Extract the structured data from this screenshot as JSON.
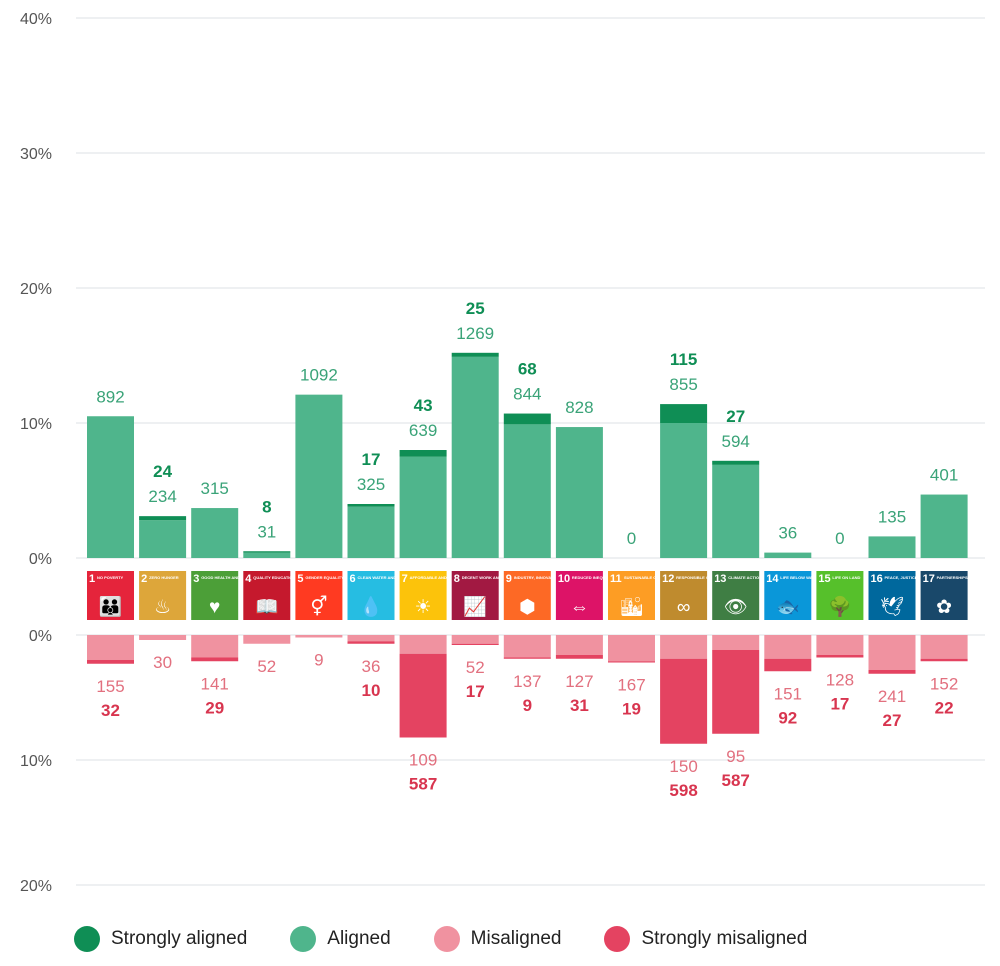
{
  "chart_data": {
    "type": "bar",
    "stacked": true,
    "diverging": true,
    "axis_ticks": {
      "positive": [
        "0%",
        "10%",
        "20%",
        "30%",
        "40%"
      ],
      "negative": [
        "0%",
        "10%",
        "20%"
      ]
    },
    "ylim_positive": [
      0,
      40
    ],
    "ylim_negative": [
      0,
      20
    ],
    "grid": true,
    "legend_position": "bottom-left",
    "categories": [
      {
        "num": "1",
        "label": "NO POVERTY",
        "color": "#e5243b",
        "glyph": "👪"
      },
      {
        "num": "2",
        "label": "ZERO HUNGER",
        "color": "#dda63a",
        "glyph": "♨"
      },
      {
        "num": "3",
        "label": "GOOD HEALTH AND WELL-BEING",
        "color": "#4c9f38",
        "glyph": "♥"
      },
      {
        "num": "4",
        "label": "QUALITY EDUCATION",
        "color": "#c5192d",
        "glyph": "📖"
      },
      {
        "num": "5",
        "label": "GENDER EQUALITY",
        "color": "#ff3a21",
        "glyph": "⚥"
      },
      {
        "num": "6",
        "label": "CLEAN WATER AND SANITATION",
        "color": "#26bde2",
        "glyph": "💧"
      },
      {
        "num": "7",
        "label": "AFFORDABLE AND CLEAN ENERGY",
        "color": "#fcc30b",
        "glyph": "☀"
      },
      {
        "num": "8",
        "label": "DECENT WORK AND ECONOMIC GROWTH",
        "color": "#a21942",
        "glyph": "📈"
      },
      {
        "num": "9",
        "label": "INDUSTRY, INNOVATION AND INFRASTRUCTURE",
        "color": "#fd6925",
        "glyph": "⬢"
      },
      {
        "num": "10",
        "label": "REDUCED INEQUALITIES",
        "color": "#dd1367",
        "glyph": "⇔"
      },
      {
        "num": "11",
        "label": "SUSTAINABLE CITIES AND COMMUNITIES",
        "color": "#fd9d24",
        "glyph": "🏙"
      },
      {
        "num": "12",
        "label": "RESPONSIBLE CONSUMPTION AND PRODUCTION",
        "color": "#bf8b2e",
        "glyph": "∞"
      },
      {
        "num": "13",
        "label": "CLIMATE ACTION",
        "color": "#3f7e44",
        "glyph": "👁"
      },
      {
        "num": "14",
        "label": "LIFE BELOW WATER",
        "color": "#0a97d9",
        "glyph": "🐟"
      },
      {
        "num": "15",
        "label": "LIFE ON LAND",
        "color": "#56c02b",
        "glyph": "🌳"
      },
      {
        "num": "16",
        "label": "PEACE, JUSTICE AND STRONG INSTITUTIONS",
        "color": "#00689d",
        "glyph": "🕊"
      },
      {
        "num": "17",
        "label": "PARTNERSHIPS FOR THE GOALS",
        "color": "#19486a",
        "glyph": "✿"
      }
    ],
    "series": [
      {
        "name": "Strongly aligned",
        "color": "#0f8e55",
        "side": "positive",
        "pct": [
          0,
          0.3,
          0,
          0.1,
          0,
          0.2,
          0.5,
          0.3,
          0.8,
          0,
          0,
          1.4,
          0.3,
          0,
          0,
          0,
          0
        ],
        "counts": [
          null,
          "24",
          null,
          "8",
          null,
          "17",
          "43",
          "25",
          "68",
          null,
          null,
          "115",
          "27",
          null,
          null,
          null,
          null
        ]
      },
      {
        "name": "Aligned",
        "color": "#4fb58c",
        "side": "positive",
        "pct": [
          10.5,
          2.8,
          3.7,
          0.4,
          12.1,
          3.8,
          7.5,
          14.9,
          9.9,
          9.7,
          0,
          10.0,
          6.9,
          0.4,
          0,
          1.6,
          4.7
        ],
        "counts": [
          "892",
          "234",
          "315",
          "31",
          "1092",
          "325",
          "639",
          "1269",
          "844",
          "828",
          "0",
          "855",
          "594",
          "36",
          "0",
          "135",
          "401"
        ]
      },
      {
        "name": "Misaligned",
        "color": "#f092a0",
        "side": "negative",
        "pct": [
          2.0,
          0.4,
          1.8,
          0.7,
          0.2,
          0.5,
          1.5,
          0.7,
          1.8,
          1.6,
          2.1,
          1.9,
          1.2,
          1.9,
          1.6,
          2.8,
          1.9
        ],
        "counts": [
          "155",
          "30",
          "141",
          "52",
          "9",
          "36",
          "109",
          "52",
          "137",
          "127",
          "167",
          "150",
          "95",
          "151",
          "128",
          "241",
          "152"
        ]
      },
      {
        "name": "Strongly misaligned",
        "color": "#e44361",
        "side": "negative",
        "pct": [
          0.3,
          0,
          0.3,
          0,
          0,
          0.2,
          6.7,
          0.1,
          0.1,
          0.3,
          0.1,
          6.8,
          6.7,
          1.0,
          0.2,
          0.3,
          0.2
        ],
        "counts": [
          "32",
          null,
          "29",
          null,
          null,
          "10",
          "587",
          "17",
          "9",
          "31",
          "19",
          "598",
          "587",
          "92",
          "17",
          "27",
          "22"
        ]
      }
    ]
  }
}
